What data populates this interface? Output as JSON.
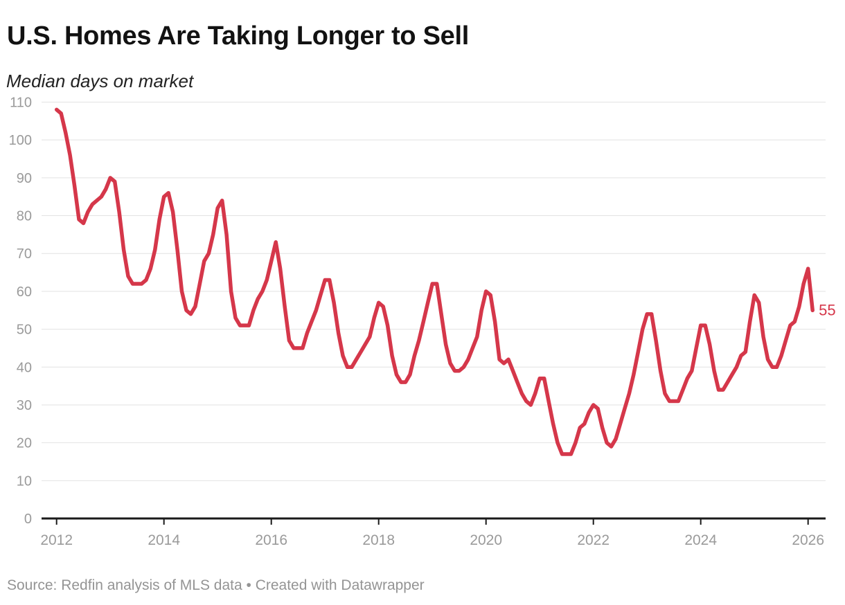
{
  "header": {
    "title": "U.S. Homes Are Taking Longer to Sell",
    "subtitle": "Median days on market"
  },
  "footer": {
    "source": "Source: Redfin analysis of MLS data • Created with Datawrapper"
  },
  "colors": {
    "line": "#d5374a",
    "end_label": "#d5374a",
    "title": "#121212",
    "subtitle": "#222222",
    "axis_label": "#9a9a9a",
    "gridline": "#e2e2e2",
    "baseline": "#1a1a1a",
    "background": "#ffffff"
  },
  "chart_data": {
    "type": "line",
    "title": "U.S. Homes Are Taking Longer to Sell",
    "ylabel": "Median days on market",
    "unit": "days",
    "frequency": "monthly",
    "start": "2012-01",
    "end": "2026-02",
    "grid": "horizontal",
    "legend": "none",
    "ylim": [
      0,
      110
    ],
    "y_ticks": [
      0,
      10,
      20,
      30,
      40,
      50,
      60,
      70,
      80,
      90,
      100,
      110
    ],
    "x_ticks": [
      "2012",
      "2014",
      "2016",
      "2018",
      "2020",
      "2022",
      "2024",
      "2026"
    ],
    "end_label": "55",
    "values": [
      108,
      107,
      102,
      96,
      88,
      79,
      78,
      81,
      83,
      84,
      85,
      87,
      90,
      89,
      81,
      71,
      64,
      62,
      62,
      62,
      63,
      66,
      71,
      79,
      85,
      86,
      81,
      71,
      60,
      55,
      54,
      56,
      62,
      68,
      70,
      75,
      82,
      84,
      75,
      60,
      53,
      51,
      51,
      51,
      55,
      58,
      60,
      63,
      68,
      73,
      66,
      56,
      47,
      45,
      45,
      45,
      49,
      52,
      55,
      59,
      63,
      63,
      57,
      49,
      43,
      40,
      40,
      42,
      44,
      46,
      48,
      53,
      57,
      56,
      51,
      43,
      38,
      36,
      36,
      38,
      43,
      47,
      52,
      57,
      62,
      62,
      54,
      46,
      41,
      39,
      39,
      40,
      42,
      45,
      48,
      55,
      60,
      59,
      52,
      42,
      41,
      42,
      39,
      36,
      33,
      31,
      30,
      33,
      37,
      37,
      31,
      25,
      20,
      17,
      17,
      17,
      20,
      24,
      25,
      28,
      30,
      29,
      24,
      20,
      19,
      21,
      25,
      29,
      33,
      38,
      44,
      50,
      54,
      54,
      47,
      39,
      33,
      31,
      31,
      31,
      34,
      37,
      39,
      45,
      51,
      51,
      46,
      39,
      34,
      34,
      36,
      38,
      40,
      43,
      44,
      52,
      59,
      57,
      48,
      42,
      40,
      40,
      43,
      47,
      51,
      52,
      56,
      62,
      66,
      55
    ]
  }
}
